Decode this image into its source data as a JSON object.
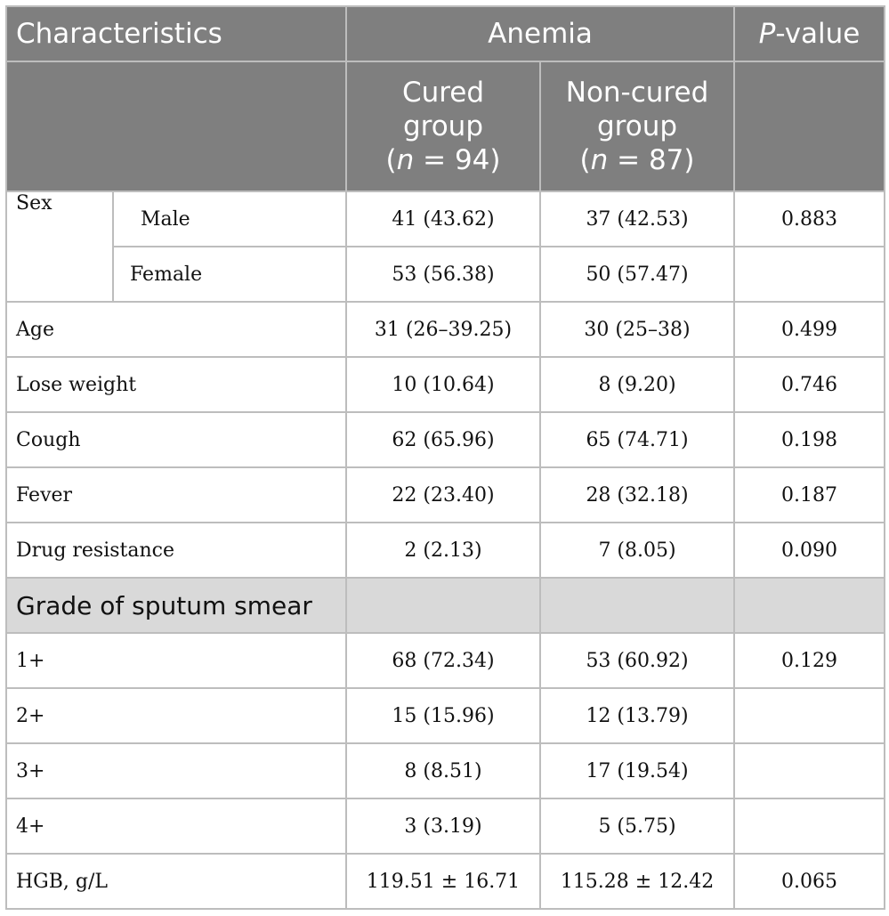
{
  "header": {
    "characteristics": "Characteristics",
    "anemia": "Anemia",
    "p_italic": "P",
    "p_rest": "-value",
    "cured": {
      "line1": "Cured",
      "line2": "group",
      "open": "(",
      "n": "n",
      "eq": " = 94)"
    },
    "noncured": {
      "line1": "Non-cured",
      "line2": "group",
      "open": "(",
      "n": "n",
      "eq": " = 87)"
    }
  },
  "rows": {
    "sex": {
      "label": "Sex",
      "male": {
        "label": "Male",
        "cured": "41 (43.62)",
        "noncured": "37 (42.53)",
        "p": "0.883"
      },
      "female": {
        "label": "Female",
        "cured": "53 (56.38)",
        "noncured": "50 (57.47)",
        "p": ""
      }
    },
    "age": {
      "label": "Age",
      "cured": "31 (26–39.25)",
      "noncured": "30 (25–38)",
      "p": "0.499"
    },
    "lose_weight": {
      "label": "Lose weight",
      "cured": "10 (10.64)",
      "noncured": "8 (9.20)",
      "p": "0.746"
    },
    "cough": {
      "label": "Cough",
      "cured": "62 (65.96)",
      "noncured": "65 (74.71)",
      "p": "0.198"
    },
    "fever": {
      "label": "Fever",
      "cured": "22 (23.40)",
      "noncured": "28 (32.18)",
      "p": "0.187"
    },
    "drug_resistance": {
      "label": "Drug resistance",
      "cured": "2 (2.13)",
      "noncured": "7 (8.05)",
      "p": "0.090"
    },
    "section_sputum": {
      "label": "Grade of sputum smear"
    },
    "g1": {
      "label": "1+",
      "cured": "68 (72.34)",
      "noncured": "53 (60.92)",
      "p": "0.129"
    },
    "g2": {
      "label": "2+",
      "cured": "15 (15.96)",
      "noncured": "12 (13.79)",
      "p": ""
    },
    "g3": {
      "label": "3+",
      "cured": "8 (8.51)",
      "noncured": "17 (19.54)",
      "p": ""
    },
    "g4": {
      "label": "4+",
      "cured": "3 (3.19)",
      "noncured": "5 (5.75)",
      "p": ""
    },
    "hgb": {
      "label": "HGB, g/L",
      "cured": "119.51 ± 16.71",
      "noncured": "115.28 ± 12.42",
      "p": "0.065"
    }
  }
}
